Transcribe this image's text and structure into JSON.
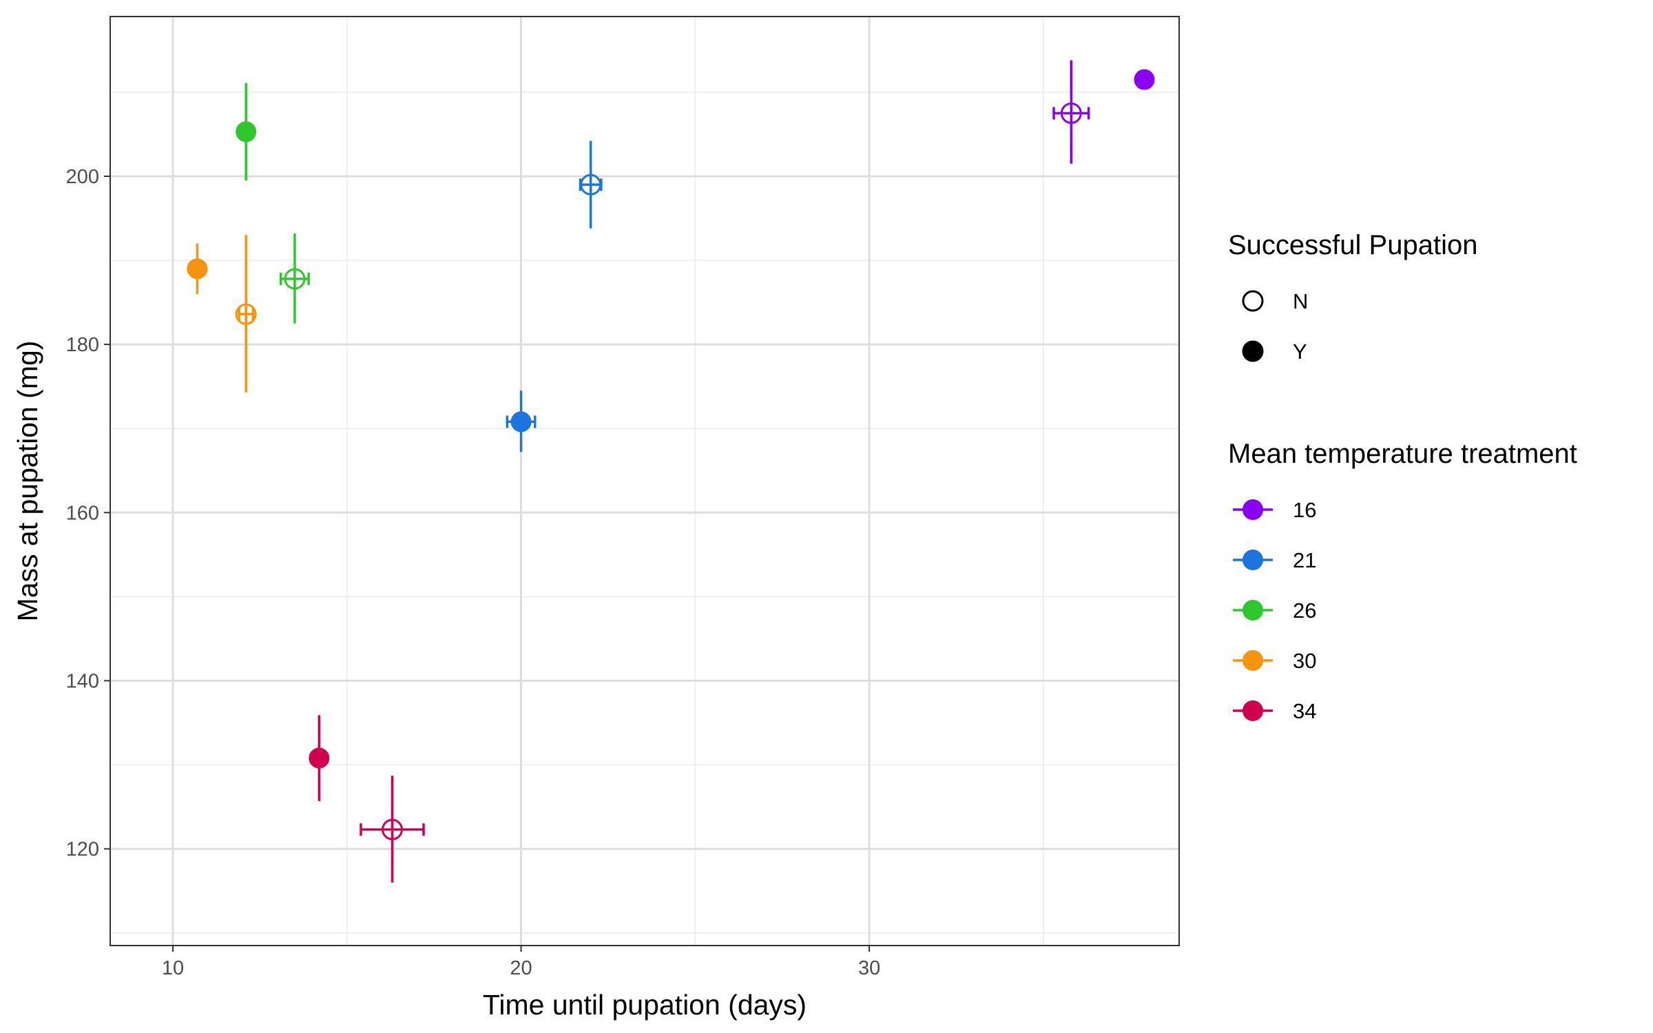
{
  "chart_data": {
    "type": "scatter",
    "xlabel": "Time until pupation (days)",
    "ylabel": "Mass at pupation (mg)",
    "xlim": [
      8.2,
      38.9
    ],
    "ylim": [
      108.5,
      219
    ],
    "x_ticks": [
      10,
      20,
      30
    ],
    "y_ticks": [
      120,
      140,
      160,
      180,
      200
    ],
    "grid": true,
    "legend_position": "right",
    "legends": {
      "shape": {
        "title": "Successful Pupation",
        "entries": [
          {
            "label": "N",
            "filled": false
          },
          {
            "label": "Y",
            "filled": true
          }
        ]
      },
      "color": {
        "title": "Mean temperature treatment",
        "entries": [
          {
            "label": "16",
            "color": "#8B00F5"
          },
          {
            "label": "21",
            "color": "#1C74DE"
          },
          {
            "label": "26",
            "color": "#2EC72E"
          },
          {
            "label": "30",
            "color": "#F7930F"
          },
          {
            "label": "34",
            "color": "#D1004F"
          }
        ]
      }
    },
    "points": [
      {
        "temperature": "16",
        "pupation": "Y",
        "x": 37.9,
        "y": 211.5,
        "ymin": null,
        "ymax": null,
        "xmin": null,
        "xmax": null
      },
      {
        "temperature": "16",
        "pupation": "N",
        "x": 35.8,
        "y": 207.5,
        "ymin": 201.5,
        "ymax": 213.8,
        "xmin": 35.3,
        "xmax": 36.3
      },
      {
        "temperature": "21",
        "pupation": "N",
        "x": 22.0,
        "y": 199.0,
        "ymin": 193.8,
        "ymax": 204.2,
        "xmin": 21.7,
        "xmax": 22.3
      },
      {
        "temperature": "21",
        "pupation": "Y",
        "x": 20.0,
        "y": 170.8,
        "ymin": 167.2,
        "ymax": 174.5,
        "xmin": 19.6,
        "xmax": 20.4
      },
      {
        "temperature": "26",
        "pupation": "Y",
        "x": 12.1,
        "y": 205.3,
        "ymin": 199.5,
        "ymax": 211.1,
        "xmin": null,
        "xmax": null
      },
      {
        "temperature": "26",
        "pupation": "N",
        "x": 13.5,
        "y": 187.8,
        "ymin": 182.5,
        "ymax": 193.2,
        "xmin": 13.1,
        "xmax": 13.9
      },
      {
        "temperature": "30",
        "pupation": "Y",
        "x": 10.7,
        "y": 189.0,
        "ymin": 186.0,
        "ymax": 192.0,
        "xmin": null,
        "xmax": null
      },
      {
        "temperature": "30",
        "pupation": "N",
        "x": 12.1,
        "y": 183.6,
        "ymin": 174.3,
        "ymax": 193.0,
        "xmin": 11.9,
        "xmax": 12.3
      },
      {
        "temperature": "34",
        "pupation": "Y",
        "x": 14.2,
        "y": 130.8,
        "ymin": 125.7,
        "ymax": 135.9,
        "xmin": null,
        "xmax": null
      },
      {
        "temperature": "34",
        "pupation": "N",
        "x": 16.3,
        "y": 122.3,
        "ymin": 116.0,
        "ymax": 128.7,
        "xmin": 15.4,
        "xmax": 17.2
      }
    ]
  }
}
